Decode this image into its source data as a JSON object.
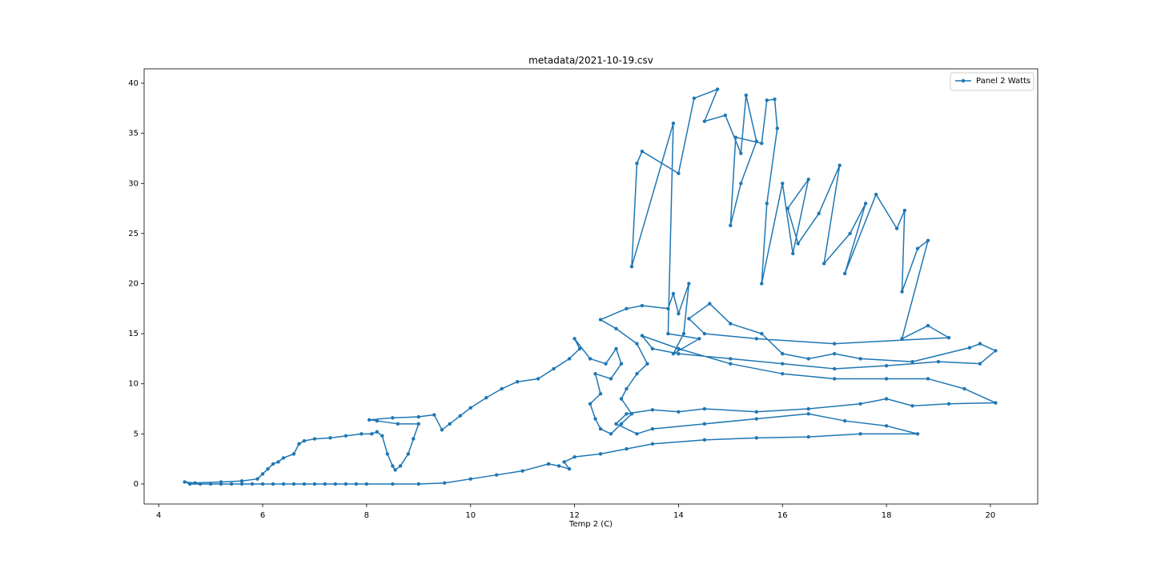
{
  "chart_data": {
    "type": "line",
    "title": "metadata/2021-10-19.csv",
    "x_label": "Temp 2 (C)",
    "x": [
      11.5,
      11,
      10.5,
      10,
      9.5,
      9,
      8.5,
      8,
      7.8,
      7.6,
      7.4,
      7.2,
      7,
      6.8,
      6.6,
      6.4,
      6.2,
      6,
      5.8,
      5.6,
      5.4,
      5.2,
      5,
      4.8,
      4.6,
      4.5,
      4.7,
      5.2,
      5.6,
      5.9,
      6.0,
      6.1,
      6.2,
      6.3,
      6.4,
      6.6,
      6.7,
      6.8,
      7.0,
      7.3,
      7.6,
      7.9,
      8.1,
      8.2,
      8.3,
      8.4,
      8.5,
      8.55,
      8.65,
      8.8,
      8.9,
      9.0,
      8.6,
      8.2,
      8.05,
      8.5,
      9.0,
      9.3,
      9.45,
      9.6,
      9.8,
      10.0,
      10.3,
      10.6,
      10.9,
      11.3,
      11.6,
      11.9,
      12.1,
      12.0,
      12.3,
      12.6,
      12.8,
      12.9,
      12.7,
      12.4,
      12.5,
      12.3,
      12.4,
      12.5,
      12.7,
      12.9,
      13.1,
      12.9,
      13.0,
      13.2,
      13.4,
      13.2,
      12.8,
      12.5,
      13.0,
      13.3,
      13.8,
      13.9,
      14.0,
      14.2,
      14.1,
      13.9,
      14.4,
      13.8,
      13.9,
      13.1,
      13.2,
      13.3,
      14.0,
      14.3,
      14.75,
      14.5,
      14.9,
      15.2,
      15.3,
      15.5,
      15.2,
      15.0,
      15.1,
      15.6,
      15.7,
      15.85,
      15.9,
      15.7,
      15.6,
      16.0,
      16.2,
      16.5,
      16.1,
      16.3,
      16.7,
      17.1,
      16.8,
      17.3,
      17.6,
      17.2,
      17.8,
      18.2,
      18.35,
      18.3,
      18.6,
      18.8,
      18.3,
      18.8,
      19.2,
      17.0,
      15.5,
      14.5,
      14.2,
      14.6,
      15.0,
      15.6,
      16.0,
      16.5,
      17.0,
      17.5,
      18.5,
      19.6,
      19.8,
      20.1,
      19.8,
      19.0,
      18.0,
      17.0,
      16.0,
      15.0,
      14.0,
      13.5,
      13.3,
      14.0,
      15.0,
      16.0,
      17.0,
      18.0,
      18.8,
      19.5,
      20.1,
      19.2,
      18.5,
      18.0,
      17.5,
      16.5,
      15.5,
      14.5,
      14.0,
      13.5,
      13.0,
      12.8,
      13.2,
      13.5,
      14.5,
      15.5,
      16.5,
      17.2,
      18.0,
      18.6,
      17.5,
      16.5,
      15.5,
      14.5,
      13.5,
      13.0,
      12.5,
      12.0,
      11.8,
      11.9,
      11.7,
      11.5
    ],
    "series": [
      {
        "name": "Panel 2 Watts",
        "color": "#1f77b4",
        "values": [
          2,
          1.3,
          0.9,
          0.5,
          0.1,
          0,
          0,
          0,
          0,
          0,
          0,
          0,
          0,
          0,
          0,
          0,
          0,
          0,
          0,
          0,
          0,
          0,
          0,
          0,
          0,
          0.2,
          0.1,
          0.2,
          0.3,
          0.5,
          1.0,
          1.5,
          2.0,
          2.2,
          2.6,
          3.0,
          4.0,
          4.3,
          4.5,
          4.6,
          4.8,
          5.0,
          5.0,
          5.2,
          4.8,
          3.0,
          1.8,
          1.4,
          1.8,
          3.0,
          4.5,
          6.0,
          6.0,
          6.3,
          6.4,
          6.6,
          6.7,
          6.9,
          5.4,
          6.0,
          6.8,
          7.6,
          8.6,
          9.5,
          10.2,
          10.5,
          11.5,
          12.5,
          13.5,
          14.5,
          12.5,
          12.0,
          13.5,
          12.0,
          10.5,
          11.0,
          9.0,
          8.0,
          6.5,
          5.5,
          5.0,
          6.0,
          7.0,
          8.5,
          9.5,
          11.0,
          12.0,
          14.0,
          15.5,
          16.4,
          17.5,
          17.8,
          17.5,
          19.0,
          17.0,
          20.0,
          15.0,
          13.0,
          14.5,
          15.0,
          36.0,
          21.7,
          32.0,
          33.2,
          31.0,
          38.5,
          39.4,
          36.2,
          36.8,
          33.0,
          38.8,
          34.2,
          30.0,
          25.8,
          34.6,
          34.0,
          38.3,
          38.4,
          35.5,
          28.0,
          20.0,
          30.0,
          23.0,
          30.4,
          27.5,
          24.0,
          27.0,
          31.8,
          22.0,
          25.0,
          28.0,
          21.0,
          28.9,
          25.5,
          27.3,
          19.2,
          23.5,
          24.3,
          14.5,
          15.8,
          14.6,
          14.0,
          14.5,
          15.0,
          16.5,
          18.0,
          16.0,
          15.0,
          13.0,
          12.5,
          13.0,
          12.5,
          12.2,
          13.6,
          14.0,
          13.3,
          12.0,
          12.2,
          11.8,
          11.5,
          12.0,
          12.5,
          13.0,
          13.5,
          14.8,
          13.5,
          12.0,
          11.0,
          10.5,
          10.5,
          10.5,
          9.5,
          8.1,
          8.0,
          7.8,
          8.5,
          8.0,
          7.5,
          7.2,
          7.5,
          7.2,
          7.4,
          7.0,
          6.0,
          5.0,
          5.5,
          6.0,
          6.5,
          7.0,
          6.3,
          5.8,
          5.0,
          5.0,
          4.7,
          4.6,
          4.4,
          4.0,
          3.5,
          3.0,
          2.7,
          2.2,
          1.5,
          1.8,
          2.0
        ]
      }
    ],
    "xlim": [
      3.72,
      20.91
    ],
    "xticks": [
      4,
      6,
      8,
      10,
      12,
      14,
      16,
      18,
      20
    ],
    "ylim": [
      -2.0,
      41.44
    ],
    "yticks": [
      0,
      5,
      10,
      15,
      20,
      25,
      30,
      35,
      40
    ],
    "legend": "upper right",
    "markers": true
  }
}
